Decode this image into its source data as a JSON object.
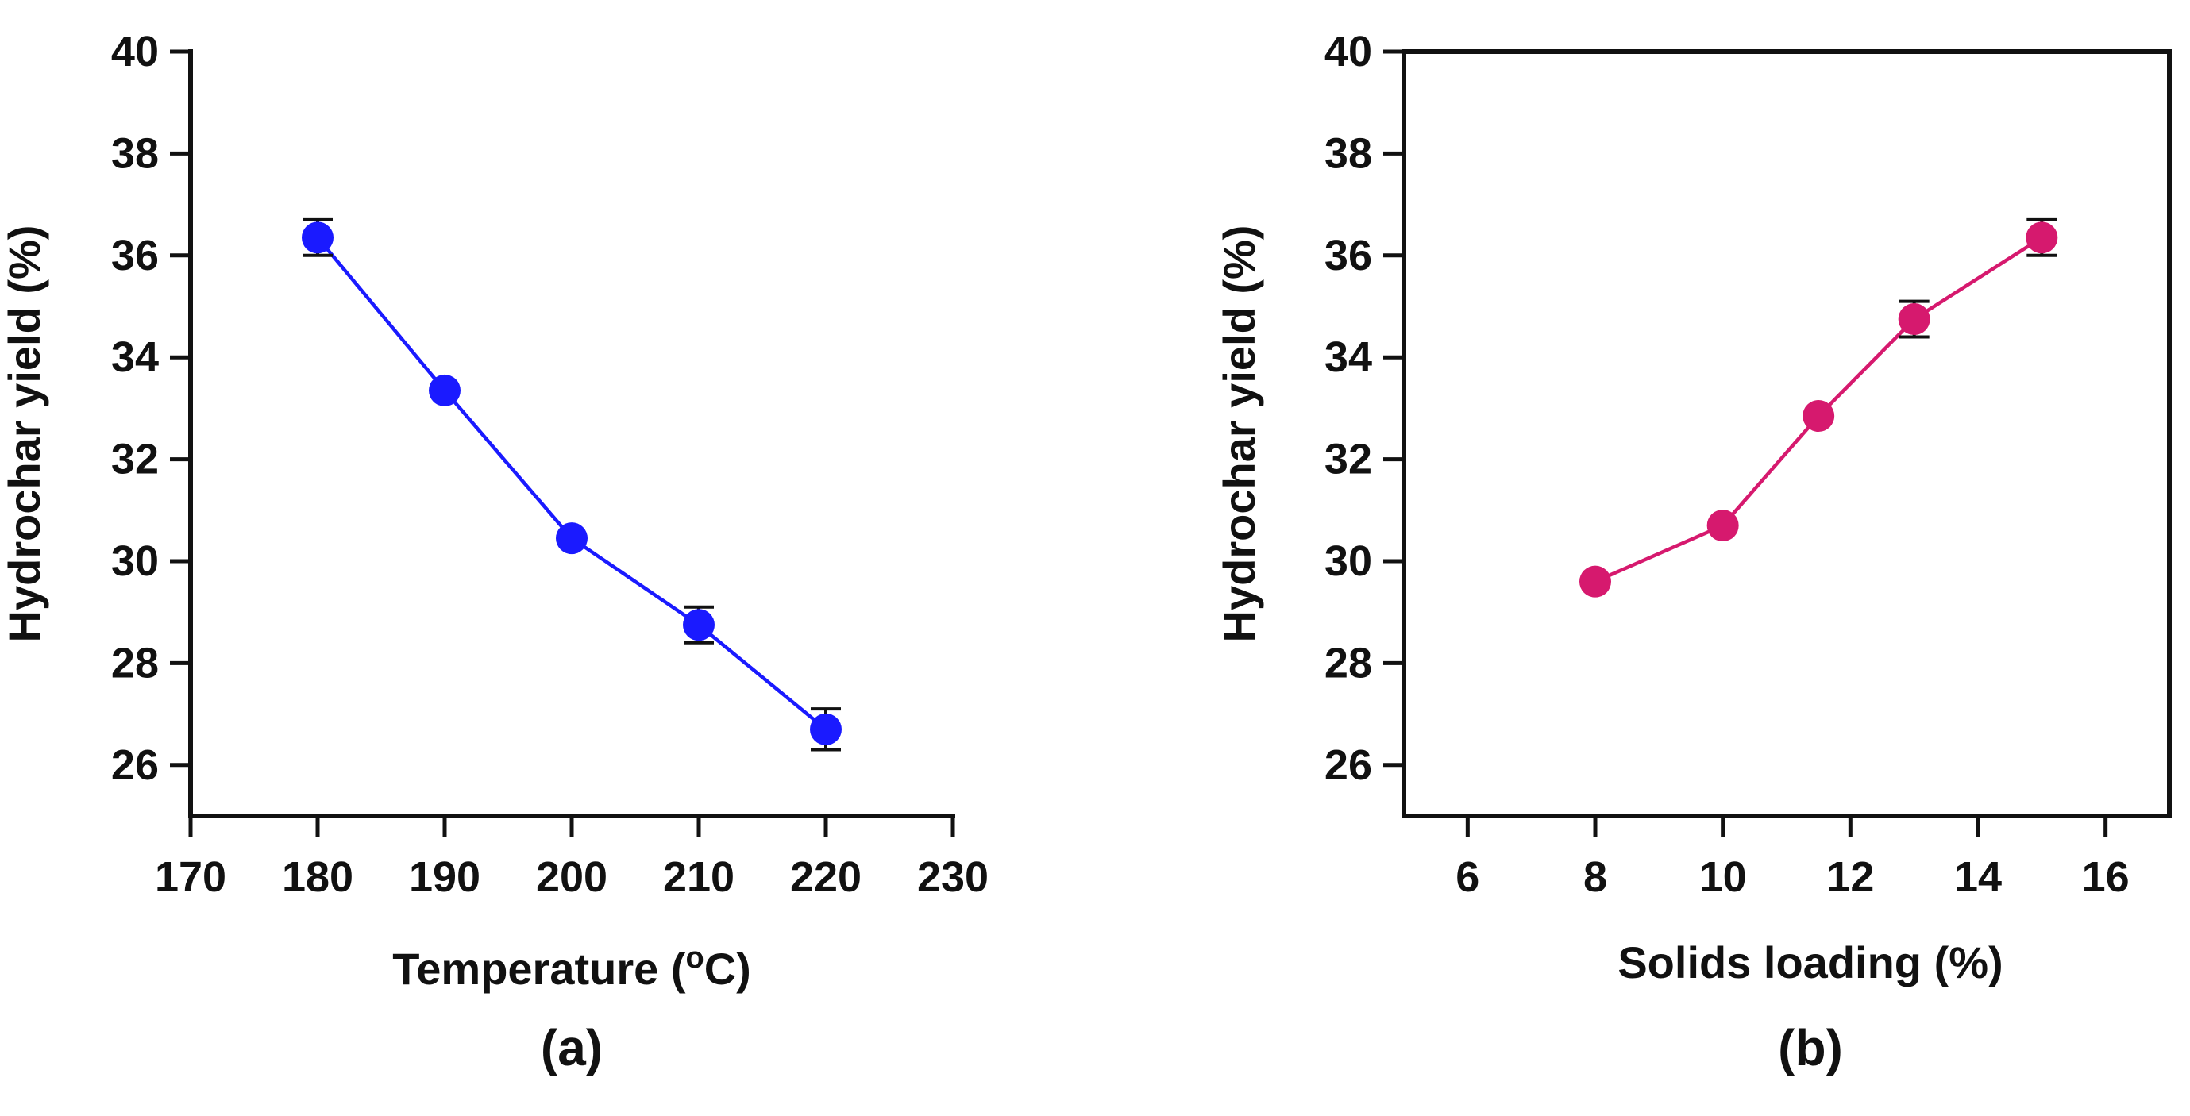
{
  "chart_data": [
    {
      "type": "line",
      "panel_label": "(a)",
      "xlabel": "Temperature  (",
      "xlabel_sup": "o",
      "xlabel_suffix": "C)",
      "ylabel": "Hydrochar yield (%)",
      "xlim": [
        170,
        230
      ],
      "ylim": [
        25,
        40
      ],
      "xticks": [
        170,
        180,
        190,
        200,
        210,
        220,
        230
      ],
      "yticks": [
        26,
        28,
        30,
        32,
        34,
        36,
        38,
        40
      ],
      "color": "#1a1aff",
      "series": [
        {
          "name": "Hydrochar yield",
          "x": [
            180,
            190,
            200,
            210,
            220
          ],
          "y": [
            36.35,
            33.35,
            30.45,
            28.75,
            26.7
          ],
          "err": [
            0.35,
            0.0,
            0.0,
            0.35,
            0.4
          ]
        }
      ]
    },
    {
      "type": "line",
      "panel_label": "(b)",
      "xlabel": "Solids loading (%)",
      "xlabel_sup": "",
      "xlabel_suffix": "",
      "ylabel": "Hydrochar yield (%)",
      "xlim": [
        5,
        17
      ],
      "ylim": [
        25,
        40
      ],
      "xticks": [
        6,
        8,
        10,
        12,
        14,
        16
      ],
      "yticks": [
        26,
        28,
        30,
        32,
        34,
        36,
        38,
        40
      ],
      "color": "#d6196e",
      "series": [
        {
          "name": "Hydrochar yield",
          "x": [
            8,
            10,
            11.5,
            13,
            15
          ],
          "y": [
            29.6,
            30.7,
            32.85,
            34.75,
            36.35
          ],
          "err": [
            0.0,
            0.0,
            0.0,
            0.35,
            0.35
          ]
        }
      ]
    }
  ]
}
